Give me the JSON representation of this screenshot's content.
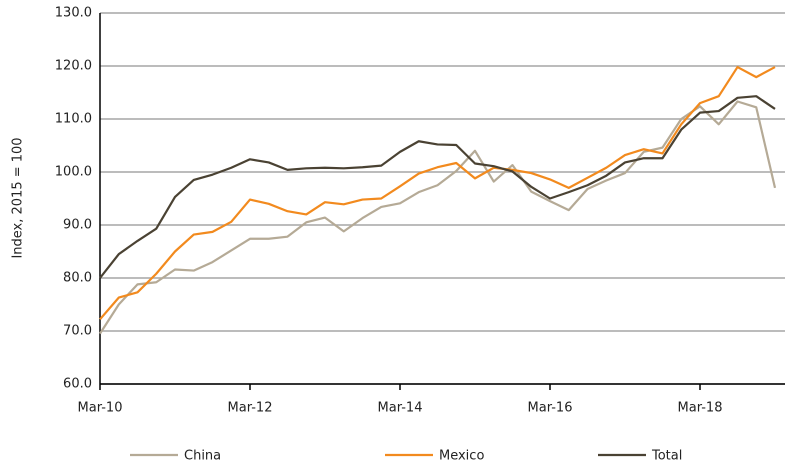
{
  "chart_data": {
    "type": "line",
    "y_label": "Index, 2015 = 100",
    "categories": [
      "Mar-10",
      null,
      null,
      null,
      null,
      null,
      null,
      null,
      "Mar-12",
      null,
      null,
      null,
      null,
      null,
      null,
      null,
      "Mar-14",
      null,
      null,
      null,
      null,
      null,
      null,
      null,
      "Mar-16",
      null,
      null,
      null,
      null,
      null,
      null,
      null,
      "Mar-18",
      null,
      null,
      null,
      null
    ],
    "series": [
      {
        "name": "China",
        "color": "#b5aa96",
        "values": [
          69.5,
          75.0,
          78.8,
          79.2,
          81.6,
          81.4,
          83.0,
          85.2,
          87.4,
          87.4,
          87.8,
          90.5,
          91.4,
          88.8,
          91.3,
          93.4,
          94.1,
          96.2,
          97.5,
          100.2,
          104.0,
          98.2,
          101.3,
          96.3,
          94.5,
          92.8,
          96.8,
          98.4,
          99.8,
          103.8,
          104.6,
          110.0,
          112.4,
          109.0,
          113.3,
          112.2,
          97.0
        ]
      },
      {
        "name": "Mexico",
        "color": "#f28a1e",
        "values": [
          72.2,
          76.3,
          77.3,
          80.8,
          85.0,
          88.2,
          88.7,
          90.6,
          94.8,
          94.0,
          92.6,
          92.0,
          94.3,
          93.9,
          94.8,
          95.0,
          97.3,
          99.7,
          100.9,
          101.7,
          98.8,
          100.8,
          100.4,
          99.8,
          98.6,
          97.0,
          98.9,
          100.8,
          103.2,
          104.3,
          103.5,
          109.0,
          113.0,
          114.3,
          119.8,
          117.9,
          119.8
        ]
      },
      {
        "name": "Total",
        "color": "#4a4233",
        "values": [
          80.0,
          84.5,
          87.0,
          89.3,
          95.3,
          98.5,
          99.5,
          100.8,
          102.4,
          101.8,
          100.4,
          100.7,
          100.8,
          100.7,
          100.9,
          101.2,
          103.8,
          105.8,
          105.2,
          105.1,
          101.6,
          101.1,
          100.1,
          97.2,
          95.0,
          96.2,
          97.5,
          99.3,
          101.8,
          102.6,
          102.6,
          108.0,
          111.2,
          111.5,
          114.0,
          114.3,
          111.9
        ]
      }
    ],
    "ylim": [
      60,
      130
    ],
    "yticks": [
      {
        "value": 60,
        "label": "60.0"
      },
      {
        "value": 70,
        "label": "70.0"
      },
      {
        "value": 80,
        "label": "80.0"
      },
      {
        "value": 90,
        "label": "90.0"
      },
      {
        "value": 100,
        "label": "100.0"
      },
      {
        "value": 110,
        "label": "110.0"
      },
      {
        "value": 120,
        "label": "120.0"
      },
      {
        "value": 130,
        "label": "130.0"
      }
    ],
    "grid": true,
    "legend": "bottom"
  }
}
